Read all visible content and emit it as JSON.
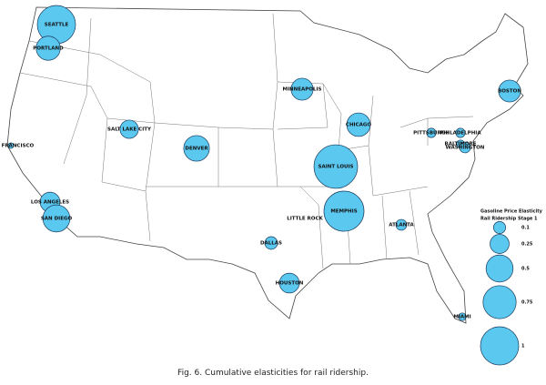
{
  "map": {
    "cities": [
      {
        "name": "SEATTLE",
        "value": 1.0
      },
      {
        "name": "PORTLAND",
        "value": 0.4
      },
      {
        "name": "SAN FRANCISCO",
        "value": 0.02
      },
      {
        "name": "SALT LAKE CITY",
        "value": 0.23
      },
      {
        "name": "DENVER",
        "value": 0.45
      },
      {
        "name": "MINNEAPOLIS",
        "value": 0.33
      },
      {
        "name": "CHICAGO",
        "value": 0.38
      },
      {
        "name": "SAINT LOUIS",
        "value": 1.3
      },
      {
        "name": "MEMPHIS",
        "value": 1.1
      },
      {
        "name": "LITTLE ROCK",
        "value": null
      },
      {
        "name": "LOS ANGELES",
        "value": 0.27
      },
      {
        "name": "SAN DIEGO",
        "value": 0.5
      },
      {
        "name": "DALLAS",
        "value": 0.11
      },
      {
        "name": "HOUSTON",
        "value": 0.27
      },
      {
        "name": "ATLANTA",
        "value": 0.08
      },
      {
        "name": "MIAMI",
        "value": 0.04
      },
      {
        "name": "PITTSBURGH",
        "value": 0.06
      },
      {
        "name": "PHILADELPHIA",
        "value": 0.06
      },
      {
        "name": "BALTIMORE",
        "value": 0.04
      },
      {
        "name": "WASHINGTON",
        "value": 0.08
      },
      {
        "name": "BOSTON",
        "value": 0.33
      }
    ],
    "bubble_color": "#5bc8f0",
    "legend": {
      "title": [
        "Gasoline Price Elasticity",
        "Rail Ridership Stage 1"
      ],
      "values": [
        0.1,
        0.25,
        0.5,
        0.75,
        1
      ]
    },
    "caption": "Fig. 6. Cumulative elasticities for rail ridership."
  }
}
